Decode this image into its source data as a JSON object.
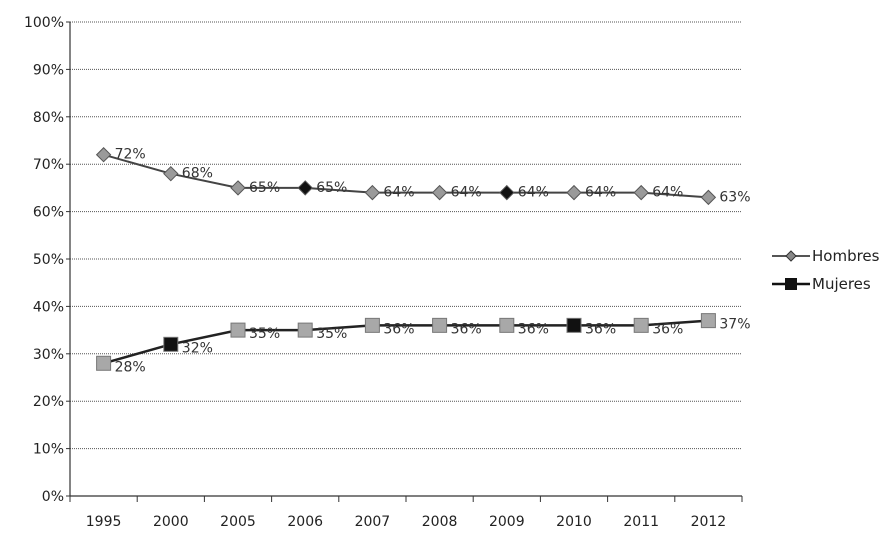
{
  "chart_data": {
    "type": "line",
    "title": "",
    "xlabel": "",
    "ylabel": "",
    "categories": [
      "1995",
      "2000",
      "2005",
      "2006",
      "2007",
      "2008",
      "2009",
      "2010",
      "2011",
      "2012"
    ],
    "ylim": [
      0,
      100
    ],
    "yticks": [
      "0%",
      "10%",
      "20%",
      "30%",
      "40%",
      "50%",
      "60%",
      "70%",
      "80%",
      "90%",
      "100%"
    ],
    "grid": true,
    "legend_position": "right",
    "series": [
      {
        "name": "Hombres",
        "marker": "diamond",
        "color": "#6a6a6a",
        "values": [
          72,
          68,
          65,
          65,
          64,
          64,
          64,
          64,
          64,
          63
        ],
        "labels": [
          "72%",
          "68%",
          "65%",
          "65%",
          "64%",
          "64%",
          "64%",
          "64%",
          "64%",
          "63%"
        ]
      },
      {
        "name": "Mujeres",
        "marker": "square",
        "color": "#111111",
        "values": [
          28,
          32,
          35,
          35,
          36,
          36,
          36,
          36,
          36,
          37
        ],
        "labels": [
          "28%",
          "32%",
          "35%",
          "35%",
          "36%",
          "36%",
          "36%",
          "36%",
          "36%",
          "37%"
        ]
      }
    ]
  }
}
